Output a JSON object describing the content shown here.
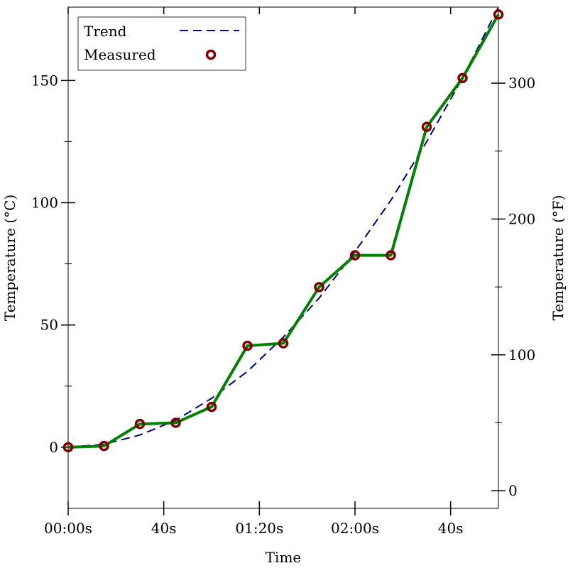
{
  "chart_data": {
    "type": "line",
    "xlabel": "Time",
    "ylabel_left": "Temperature (°C)",
    "ylabel_right": "Temperature (°F)",
    "x_unit": "seconds",
    "xlim": [
      0,
      180
    ],
    "ylim": [
      -25,
      180
    ],
    "y_right_lim": [
      -13,
      356
    ],
    "x_ticks": [
      {
        "value": 0,
        "label": "00:00s"
      },
      {
        "value": 40,
        "label": "40s"
      },
      {
        "value": 80,
        "label": "01:20s"
      },
      {
        "value": 120,
        "label": "02:00s"
      },
      {
        "value": 160,
        "label": "40s"
      }
    ],
    "x_top_ticks": [
      0,
      40,
      80,
      120,
      160
    ],
    "y_left_major_ticks": [
      0,
      50,
      100,
      150
    ],
    "y_left_minor_ticks": [
      25,
      75,
      125
    ],
    "y_right_major_ticks": [
      0,
      100,
      200,
      300
    ],
    "y_right_minor_ticks": [
      50,
      150,
      250
    ],
    "legend_position": "top-left",
    "grid": false,
    "series": [
      {
        "name": "Trend",
        "style": "dashed",
        "color": "#000080",
        "x": [
          0,
          15,
          30,
          45,
          60,
          75,
          90,
          105,
          120,
          135,
          150,
          165,
          180
        ],
        "y": [
          0,
          1.2,
          5,
          11,
          20,
          31,
          45,
          61,
          80,
          101,
          125,
          151,
          180
        ]
      },
      {
        "name": "Measured",
        "style": "markers",
        "marker_color": "#800000",
        "line_color": "#008000",
        "x": [
          0,
          15,
          30,
          45,
          60,
          75,
          90,
          105,
          120,
          135,
          150,
          165,
          180
        ],
        "y": [
          0,
          0.5,
          9.5,
          10,
          16.5,
          41.5,
          42.5,
          65.5,
          78.5,
          78.5,
          131,
          151,
          177
        ]
      }
    ]
  }
}
